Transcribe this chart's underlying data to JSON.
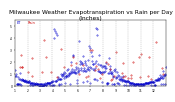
{
  "title": "Milwaukee Weather Evapotranspiration vs Rain per Day (Inches)",
  "title_fontsize": 4.2,
  "background_color": "#ffffff",
  "et_color": "#0000cc",
  "rain_color": "#cc0000",
  "grid_color": "#888888",
  "n_days": 365,
  "ylim": [
    0,
    0.55
  ],
  "yticks": [
    0.0,
    0.1,
    0.2,
    0.3,
    0.4,
    0.5
  ],
  "ytick_labels": [
    "0",
    ".1",
    ".2",
    ".3",
    ".4",
    ".5"
  ],
  "month_starts": [
    0,
    31,
    59,
    90,
    120,
    151,
    181,
    212,
    243,
    273,
    304,
    334
  ],
  "month_labels": [
    "1",
    "2",
    "3",
    "4",
    "5",
    "6",
    "7",
    "8",
    "9",
    "10",
    "11",
    "12"
  ],
  "et_seed": 42,
  "rain_seed": 123
}
